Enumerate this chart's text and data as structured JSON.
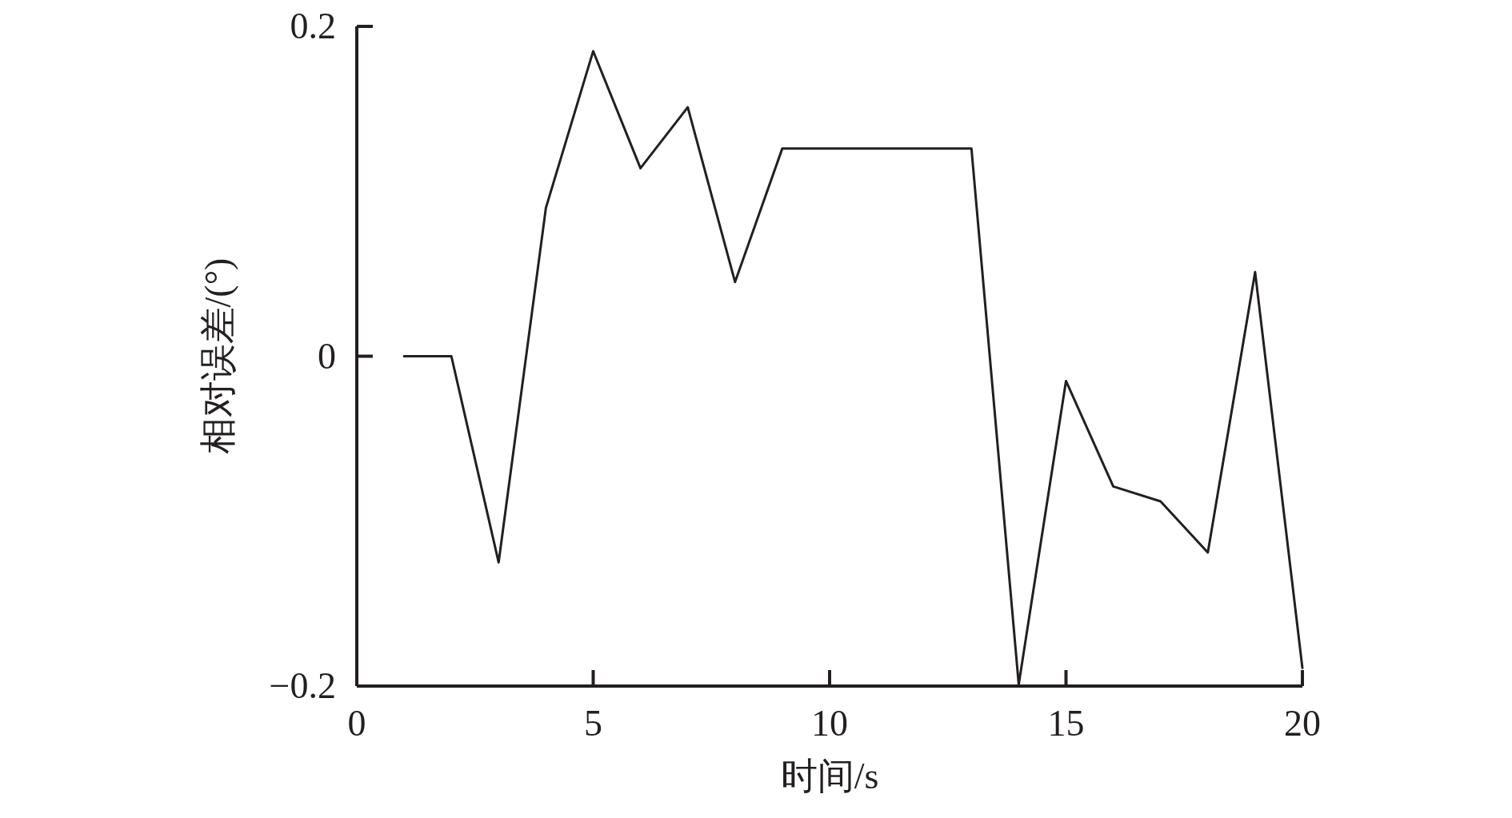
{
  "chart_data": {
    "type": "line",
    "xlabel": "时间/s",
    "ylabel": "相对误差/(°)",
    "x": [
      1,
      2,
      3,
      4,
      5,
      6,
      7,
      8,
      9,
      10,
      11,
      12,
      13,
      14,
      15,
      16,
      17,
      18,
      19,
      20
    ],
    "series": [
      {
        "color": "#231f20",
        "values": [
          0,
          0,
          -0.125,
          0.09,
          0.185,
          0.114,
          0.151,
          0.045,
          0.126,
          0.126,
          0.126,
          0.126,
          0.126,
          -0.199,
          -0.015,
          -0.079,
          -0.088,
          -0.119,
          0.051,
          -0.189
        ]
      }
    ],
    "xlim": [
      0,
      20
    ],
    "ylim": [
      -0.2,
      0.2
    ],
    "xticks": [
      0,
      5,
      10,
      15,
      20
    ],
    "yticks": [
      {
        "value": -0.2,
        "label": "−0.2"
      },
      0,
      0.2
    ]
  }
}
